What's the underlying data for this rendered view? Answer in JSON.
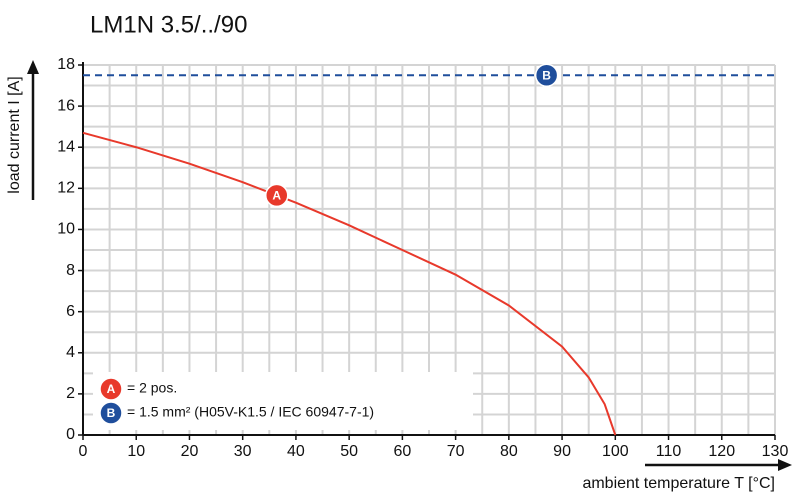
{
  "chart_data": {
    "type": "line",
    "title": "LM1N 3.5/../90",
    "x_label": "ambient temperature T [°C]",
    "y_label": "load current I [A]",
    "xlim": [
      0,
      130
    ],
    "xticks": [
      0,
      10,
      20,
      30,
      40,
      50,
      60,
      70,
      80,
      90,
      100,
      110,
      120,
      130
    ],
    "ylim": [
      0,
      18
    ],
    "yticks": [
      0,
      2,
      4,
      6,
      8,
      10,
      12,
      14,
      16,
      18
    ],
    "grid": true,
    "series": [
      {
        "name": "A",
        "description": "= 2 pos.",
        "color": "#e8392b",
        "dashed": false,
        "x": [
          0,
          10,
          20,
          30,
          40,
          50,
          60,
          70,
          80,
          90,
          95,
          98,
          100
        ],
        "values": [
          14.7,
          14.0,
          13.2,
          12.3,
          11.3,
          10.2,
          9.0,
          7.8,
          6.3,
          4.3,
          2.8,
          1.5,
          0
        ]
      },
      {
        "name": "B",
        "description": "= 1.5 mm² (H05V-K1.5 / IEC 60947-7-1)",
        "color": "#1f4e9c",
        "dashed": true,
        "x": [
          0,
          130
        ],
        "values": [
          17.5,
          17.5
        ]
      }
    ]
  }
}
